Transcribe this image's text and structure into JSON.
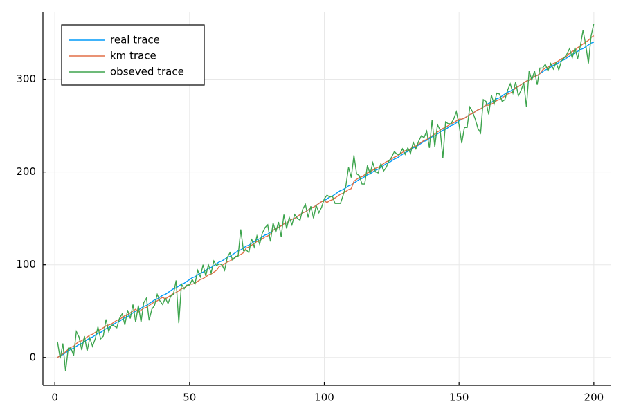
{
  "chart_data": {
    "type": "line",
    "x": [
      1,
      2,
      3,
      4,
      5,
      6,
      7,
      8,
      9,
      10,
      11,
      12,
      13,
      14,
      15,
      16,
      17,
      18,
      19,
      20,
      21,
      22,
      23,
      24,
      25,
      26,
      27,
      28,
      29,
      30,
      31,
      32,
      33,
      34,
      35,
      36,
      37,
      38,
      39,
      40,
      41,
      42,
      43,
      44,
      45,
      46,
      47,
      48,
      49,
      50,
      51,
      52,
      53,
      54,
      55,
      56,
      57,
      58,
      59,
      60,
      61,
      62,
      63,
      64,
      65,
      66,
      67,
      68,
      69,
      70,
      71,
      72,
      73,
      74,
      75,
      76,
      77,
      78,
      79,
      80,
      81,
      82,
      83,
      84,
      85,
      86,
      87,
      88,
      89,
      90,
      91,
      92,
      93,
      94,
      95,
      96,
      97,
      98,
      99,
      100,
      101,
      102,
      103,
      104,
      105,
      106,
      107,
      108,
      109,
      110,
      111,
      112,
      113,
      114,
      115,
      116,
      117,
      118,
      119,
      120,
      121,
      122,
      123,
      124,
      125,
      126,
      127,
      128,
      129,
      130,
      131,
      132,
      133,
      134,
      135,
      136,
      137,
      138,
      139,
      140,
      141,
      142,
      143,
      144,
      145,
      146,
      147,
      148,
      149,
      150,
      151,
      152,
      153,
      154,
      155,
      156,
      157,
      158,
      159,
      160,
      161,
      162,
      163,
      164,
      165,
      166,
      167,
      168,
      169,
      170,
      171,
      172,
      173,
      174,
      175,
      176,
      177,
      178,
      179,
      180,
      181,
      182,
      183,
      184,
      185,
      186,
      187,
      188,
      189,
      190,
      191,
      192,
      193,
      194,
      195,
      196,
      197,
      198,
      199,
      200
    ],
    "series": [
      {
        "name": "real trace",
        "color": "#009af9",
        "values": [
          0,
          2,
          3,
          5,
          7,
          9,
          10,
          12,
          14,
          15,
          17,
          19,
          21,
          22,
          24,
          26,
          27,
          29,
          31,
          32,
          34,
          36,
          38,
          39,
          41,
          43,
          44,
          46,
          48,
          50,
          51,
          53,
          55,
          56,
          58,
          60,
          62,
          63,
          65,
          67,
          68,
          70,
          72,
          74,
          75,
          77,
          79,
          80,
          82,
          84,
          86,
          87,
          89,
          91,
          92,
          94,
          96,
          97,
          99,
          101,
          103,
          104,
          106,
          108,
          109,
          111,
          113,
          115,
          116,
          118,
          120,
          121,
          123,
          125,
          127,
          128,
          130,
          132,
          133,
          135,
          137,
          139,
          140,
          142,
          144,
          145,
          147,
          149,
          150,
          152,
          154,
          156,
          157,
          159,
          161,
          162,
          164,
          166,
          168,
          169,
          171,
          173,
          174,
          176,
          178,
          180,
          181,
          183,
          185,
          186,
          188,
          190,
          192,
          193,
          195,
          197,
          198,
          200,
          202,
          203,
          205,
          207,
          209,
          210,
          212,
          214,
          215,
          217,
          219,
          221,
          222,
          224,
          226,
          227,
          229,
          231,
          233,
          234,
          236,
          238,
          239,
          241,
          243,
          245,
          246,
          248,
          250,
          251,
          253,
          255,
          257,
          258,
          260,
          262,
          263,
          265,
          267,
          268,
          270,
          272,
          274,
          275,
          277,
          279,
          280,
          282,
          284,
          286,
          287,
          289,
          291,
          292,
          294,
          296,
          298,
          299,
          301,
          303,
          304,
          306,
          308,
          310,
          311,
          313,
          315,
          316,
          318,
          320,
          321,
          323,
          325,
          327,
          328,
          330,
          332,
          333,
          335,
          337,
          339,
          340
        ]
      },
      {
        "name": "km trace",
        "color": "#e26f46",
        "values": [
          0,
          2,
          4,
          6,
          9,
          11,
          12,
          15,
          17,
          18,
          20,
          22,
          24,
          25,
          27,
          29,
          30,
          32,
          34,
          35,
          36,
          38,
          40,
          41,
          43,
          45,
          46,
          48,
          50,
          52,
          49,
          51,
          53,
          54,
          56,
          58,
          60,
          61,
          63,
          65,
          63,
          65,
          67,
          69,
          70,
          72,
          74,
          75,
          77,
          79,
          79,
          80,
          82,
          84,
          85,
          87,
          89,
          90,
          92,
          94,
          98,
          99,
          101,
          103,
          104,
          106,
          108,
          110,
          111,
          113,
          118,
          119,
          121,
          123,
          125,
          126,
          128,
          130,
          131,
          133,
          137,
          139,
          140,
          142,
          144,
          145,
          147,
          149,
          150,
          152,
          154,
          156,
          157,
          159,
          161,
          162,
          164,
          166,
          168,
          169,
          167,
          169,
          170,
          172,
          174,
          176,
          177,
          179,
          181,
          182,
          190,
          192,
          194,
          195,
          197,
          199,
          200,
          202,
          204,
          205,
          207,
          209,
          211,
          212,
          214,
          216,
          217,
          219,
          221,
          223,
          223,
          225,
          227,
          228,
          230,
          232,
          234,
          235,
          237,
          239,
          241,
          243,
          245,
          247,
          248,
          250,
          252,
          253,
          255,
          257,
          257,
          258,
          260,
          262,
          263,
          265,
          267,
          268,
          270,
          272,
          272,
          273,
          275,
          277,
          278,
          280,
          282,
          284,
          285,
          287,
          291,
          292,
          294,
          296,
          298,
          299,
          301,
          303,
          304,
          306,
          310,
          312,
          313,
          315,
          317,
          318,
          320,
          322,
          323,
          325,
          328,
          330,
          331,
          334,
          336,
          338,
          340,
          342,
          345,
          347
        ]
      },
      {
        "name": "obseved trace",
        "color": "#3da44d",
        "values": [
          17,
          -1,
          15,
          -15,
          10,
          10,
          2,
          28,
          22,
          8,
          23,
          7,
          21,
          12,
          20,
          33,
          20,
          23,
          41,
          28,
          35,
          34,
          32,
          42,
          47,
          35,
          51,
          42,
          57,
          38,
          56,
          38,
          59,
          64,
          40,
          52,
          56,
          68,
          61,
          57,
          64,
          58,
          66,
          68,
          83,
          37,
          79,
          74,
          78,
          78,
          84,
          79,
          94,
          87,
          100,
          88,
          100,
          91,
          104,
          99,
          101,
          100,
          94,
          108,
          113,
          105,
          109,
          109,
          138,
          115,
          116,
          113,
          128,
          119,
          131,
          122,
          134,
          140,
          143,
          125,
          145,
          135,
          146,
          130,
          154,
          139,
          151,
          143,
          154,
          150,
          148,
          160,
          165,
          151,
          163,
          150,
          164,
          156,
          162,
          171,
          175,
          173,
          174,
          166,
          166,
          166,
          175,
          185,
          205,
          194,
          218,
          198,
          196,
          187,
          187,
          207,
          198,
          210,
          200,
          199,
          209,
          201,
          205,
          212,
          216,
          222,
          219,
          219,
          225,
          219,
          226,
          220,
          232,
          225,
          233,
          239,
          237,
          244,
          226,
          256,
          227,
          251,
          245,
          215,
          254,
          252,
          252,
          257,
          265,
          251,
          231,
          248,
          248,
          270,
          265,
          257,
          247,
          242,
          278,
          276,
          262,
          283,
          273,
          285,
          284,
          276,
          278,
          288,
          295,
          285,
          297,
          282,
          288,
          296,
          270,
          309,
          299,
          309,
          294,
          312,
          312,
          316,
          309,
          317,
          311,
          318,
          310,
          320,
          323,
          327,
          333,
          323,
          334,
          322,
          336,
          353,
          337,
          317,
          347,
          360
        ]
      }
    ],
    "xlim": [
      -4.4,
      206.2
    ],
    "ylim": [
      -30,
      372
    ],
    "xticks": [
      0,
      50,
      100,
      150,
      200
    ],
    "yticks": [
      0,
      100,
      200,
      300
    ],
    "grid": true,
    "legend": "top-left"
  }
}
